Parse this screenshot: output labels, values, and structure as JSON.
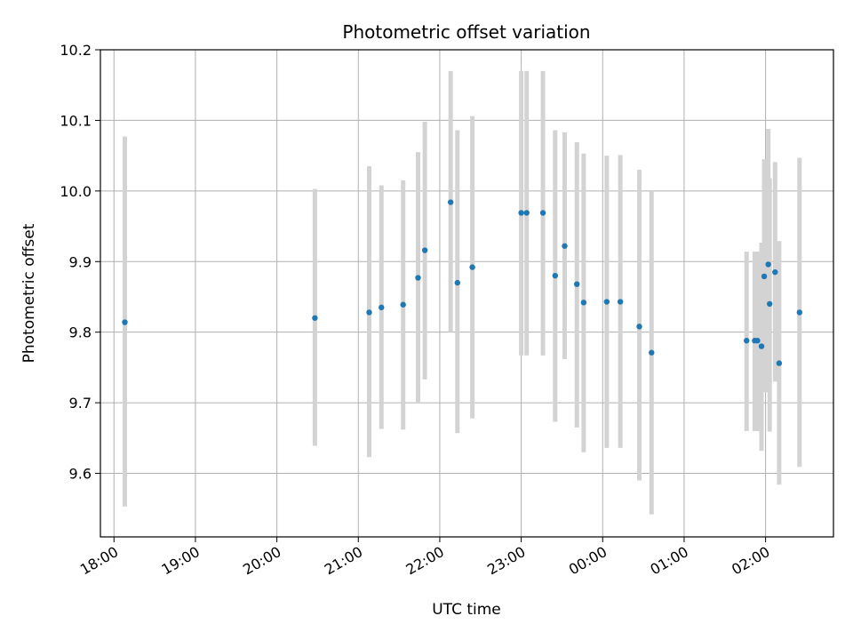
{
  "chart_data": {
    "type": "scatter",
    "title": "Photometric offset variation",
    "xlabel": "UTC time",
    "ylabel": "Photometric offset",
    "x_tick_labels": [
      "18:00",
      "19:00",
      "20:00",
      "21:00",
      "22:00",
      "23:00",
      "00:00",
      "01:00",
      "02:00"
    ],
    "y_ticks": [
      9.6,
      9.7,
      9.8,
      9.9,
      10.0,
      10.1,
      10.2
    ],
    "y_tick_labels": [
      "9.6",
      "9.7",
      "9.8",
      "9.9",
      "10.0",
      "10.1",
      "10.2"
    ],
    "xlim": [
      "17:50",
      "02:50"
    ],
    "ylim": [
      9.51,
      10.2
    ],
    "grid": true,
    "point_color": "#1f77b4",
    "errorbar_color": "#d3d3d3",
    "points": [
      {
        "t": "18:08",
        "y": 9.814,
        "lo": 9.553,
        "hi": 10.077
      },
      {
        "t": "20:28",
        "y": 9.82,
        "lo": 9.639,
        "hi": 10.003
      },
      {
        "t": "21:08",
        "y": 9.828,
        "lo": 9.623,
        "hi": 10.035
      },
      {
        "t": "21:17",
        "y": 9.835,
        "lo": 9.663,
        "hi": 10.008
      },
      {
        "t": "21:33",
        "y": 9.839,
        "lo": 9.662,
        "hi": 10.015
      },
      {
        "t": "21:44",
        "y": 9.877,
        "lo": 9.7,
        "hi": 10.055
      },
      {
        "t": "21:49",
        "y": 9.916,
        "lo": 9.733,
        "hi": 10.098
      },
      {
        "t": "22:08",
        "y": 9.984,
        "lo": 9.8,
        "hi": 10.17
      },
      {
        "t": "22:13",
        "y": 9.87,
        "lo": 9.657,
        "hi": 10.086
      },
      {
        "t": "22:24",
        "y": 9.892,
        "lo": 9.678,
        "hi": 10.106
      },
      {
        "t": "23:00",
        "y": 9.969,
        "lo": 9.767,
        "hi": 10.17
      },
      {
        "t": "23:04",
        "y": 9.969,
        "lo": 9.767,
        "hi": 10.17
      },
      {
        "t": "23:16",
        "y": 9.969,
        "lo": 9.767,
        "hi": 10.17
      },
      {
        "t": "23:25",
        "y": 9.88,
        "lo": 9.673,
        "hi": 10.086
      },
      {
        "t": "23:32",
        "y": 9.922,
        "lo": 9.762,
        "hi": 10.083
      },
      {
        "t": "23:41",
        "y": 9.868,
        "lo": 9.665,
        "hi": 10.069
      },
      {
        "t": "23:46",
        "y": 9.842,
        "lo": 9.63,
        "hi": 10.053
      },
      {
        "t": "00:03",
        "y": 9.843,
        "lo": 9.636,
        "hi": 10.05
      },
      {
        "t": "00:13",
        "y": 9.843,
        "lo": 9.636,
        "hi": 10.051
      },
      {
        "t": "00:27",
        "y": 9.808,
        "lo": 9.59,
        "hi": 10.03
      },
      {
        "t": "00:36",
        "y": 9.771,
        "lo": 9.542,
        "hi": 10.0
      },
      {
        "t": "01:46",
        "y": 9.788,
        "lo": 9.66,
        "hi": 9.914
      },
      {
        "t": "01:52",
        "y": 9.788,
        "lo": 9.66,
        "hi": 9.914
      },
      {
        "t": "01:54",
        "y": 9.788,
        "lo": 9.66,
        "hi": 9.914
      },
      {
        "t": "01:57",
        "y": 9.78,
        "lo": 9.632,
        "hi": 9.927
      },
      {
        "t": "01:59",
        "y": 9.879,
        "lo": 9.715,
        "hi": 10.045
      },
      {
        "t": "02:02",
        "y": 9.896,
        "lo": 9.715,
        "hi": 10.088
      },
      {
        "t": "02:03",
        "y": 9.84,
        "lo": 9.659,
        "hi": 10.018
      },
      {
        "t": "02:07",
        "y": 9.885,
        "lo": 9.73,
        "hi": 10.041
      },
      {
        "t": "02:10",
        "y": 9.756,
        "lo": 9.584,
        "hi": 9.929
      },
      {
        "t": "02:25",
        "y": 9.828,
        "lo": 9.609,
        "hi": 10.047
      }
    ]
  }
}
